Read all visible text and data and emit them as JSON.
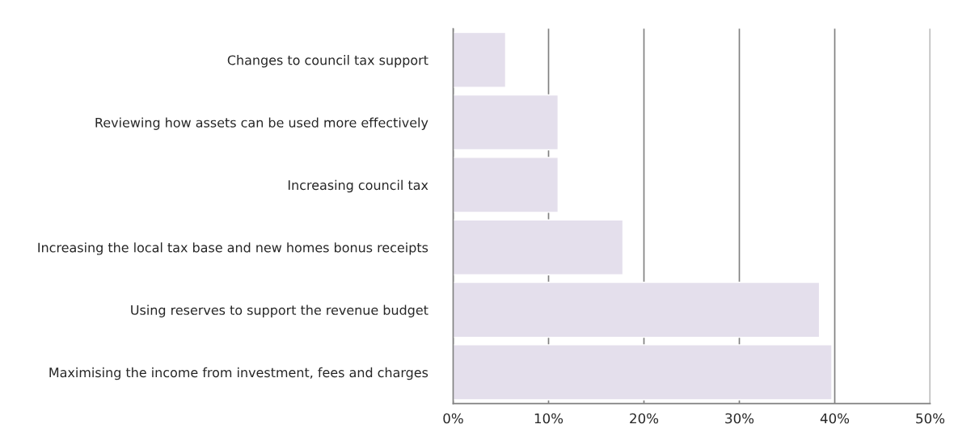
{
  "chart_data": {
    "type": "bar",
    "orientation": "horizontal",
    "categories": [
      "Changes to council tax support",
      "Reviewing how assets can be used more effectively",
      "Increasing council tax",
      "Increasing the local tax base and new homes bonus receipts",
      "Using reserves to support the revenue budget",
      "Maximising the income from investment, fees and charges"
    ],
    "values": [
      5.5,
      11.0,
      11.0,
      17.8,
      38.4,
      39.7
    ],
    "color": "#e4dfec",
    "xlim": [
      0,
      50
    ],
    "xticks": [
      {
        "value": 0,
        "label": "0%"
      },
      {
        "value": 10,
        "label": "10%"
      },
      {
        "value": 20,
        "label": "20%"
      },
      {
        "value": 30,
        "label": "30%"
      },
      {
        "value": 40,
        "label": "40%"
      },
      {
        "value": 50,
        "label": "50%"
      }
    ],
    "grid": "x"
  }
}
